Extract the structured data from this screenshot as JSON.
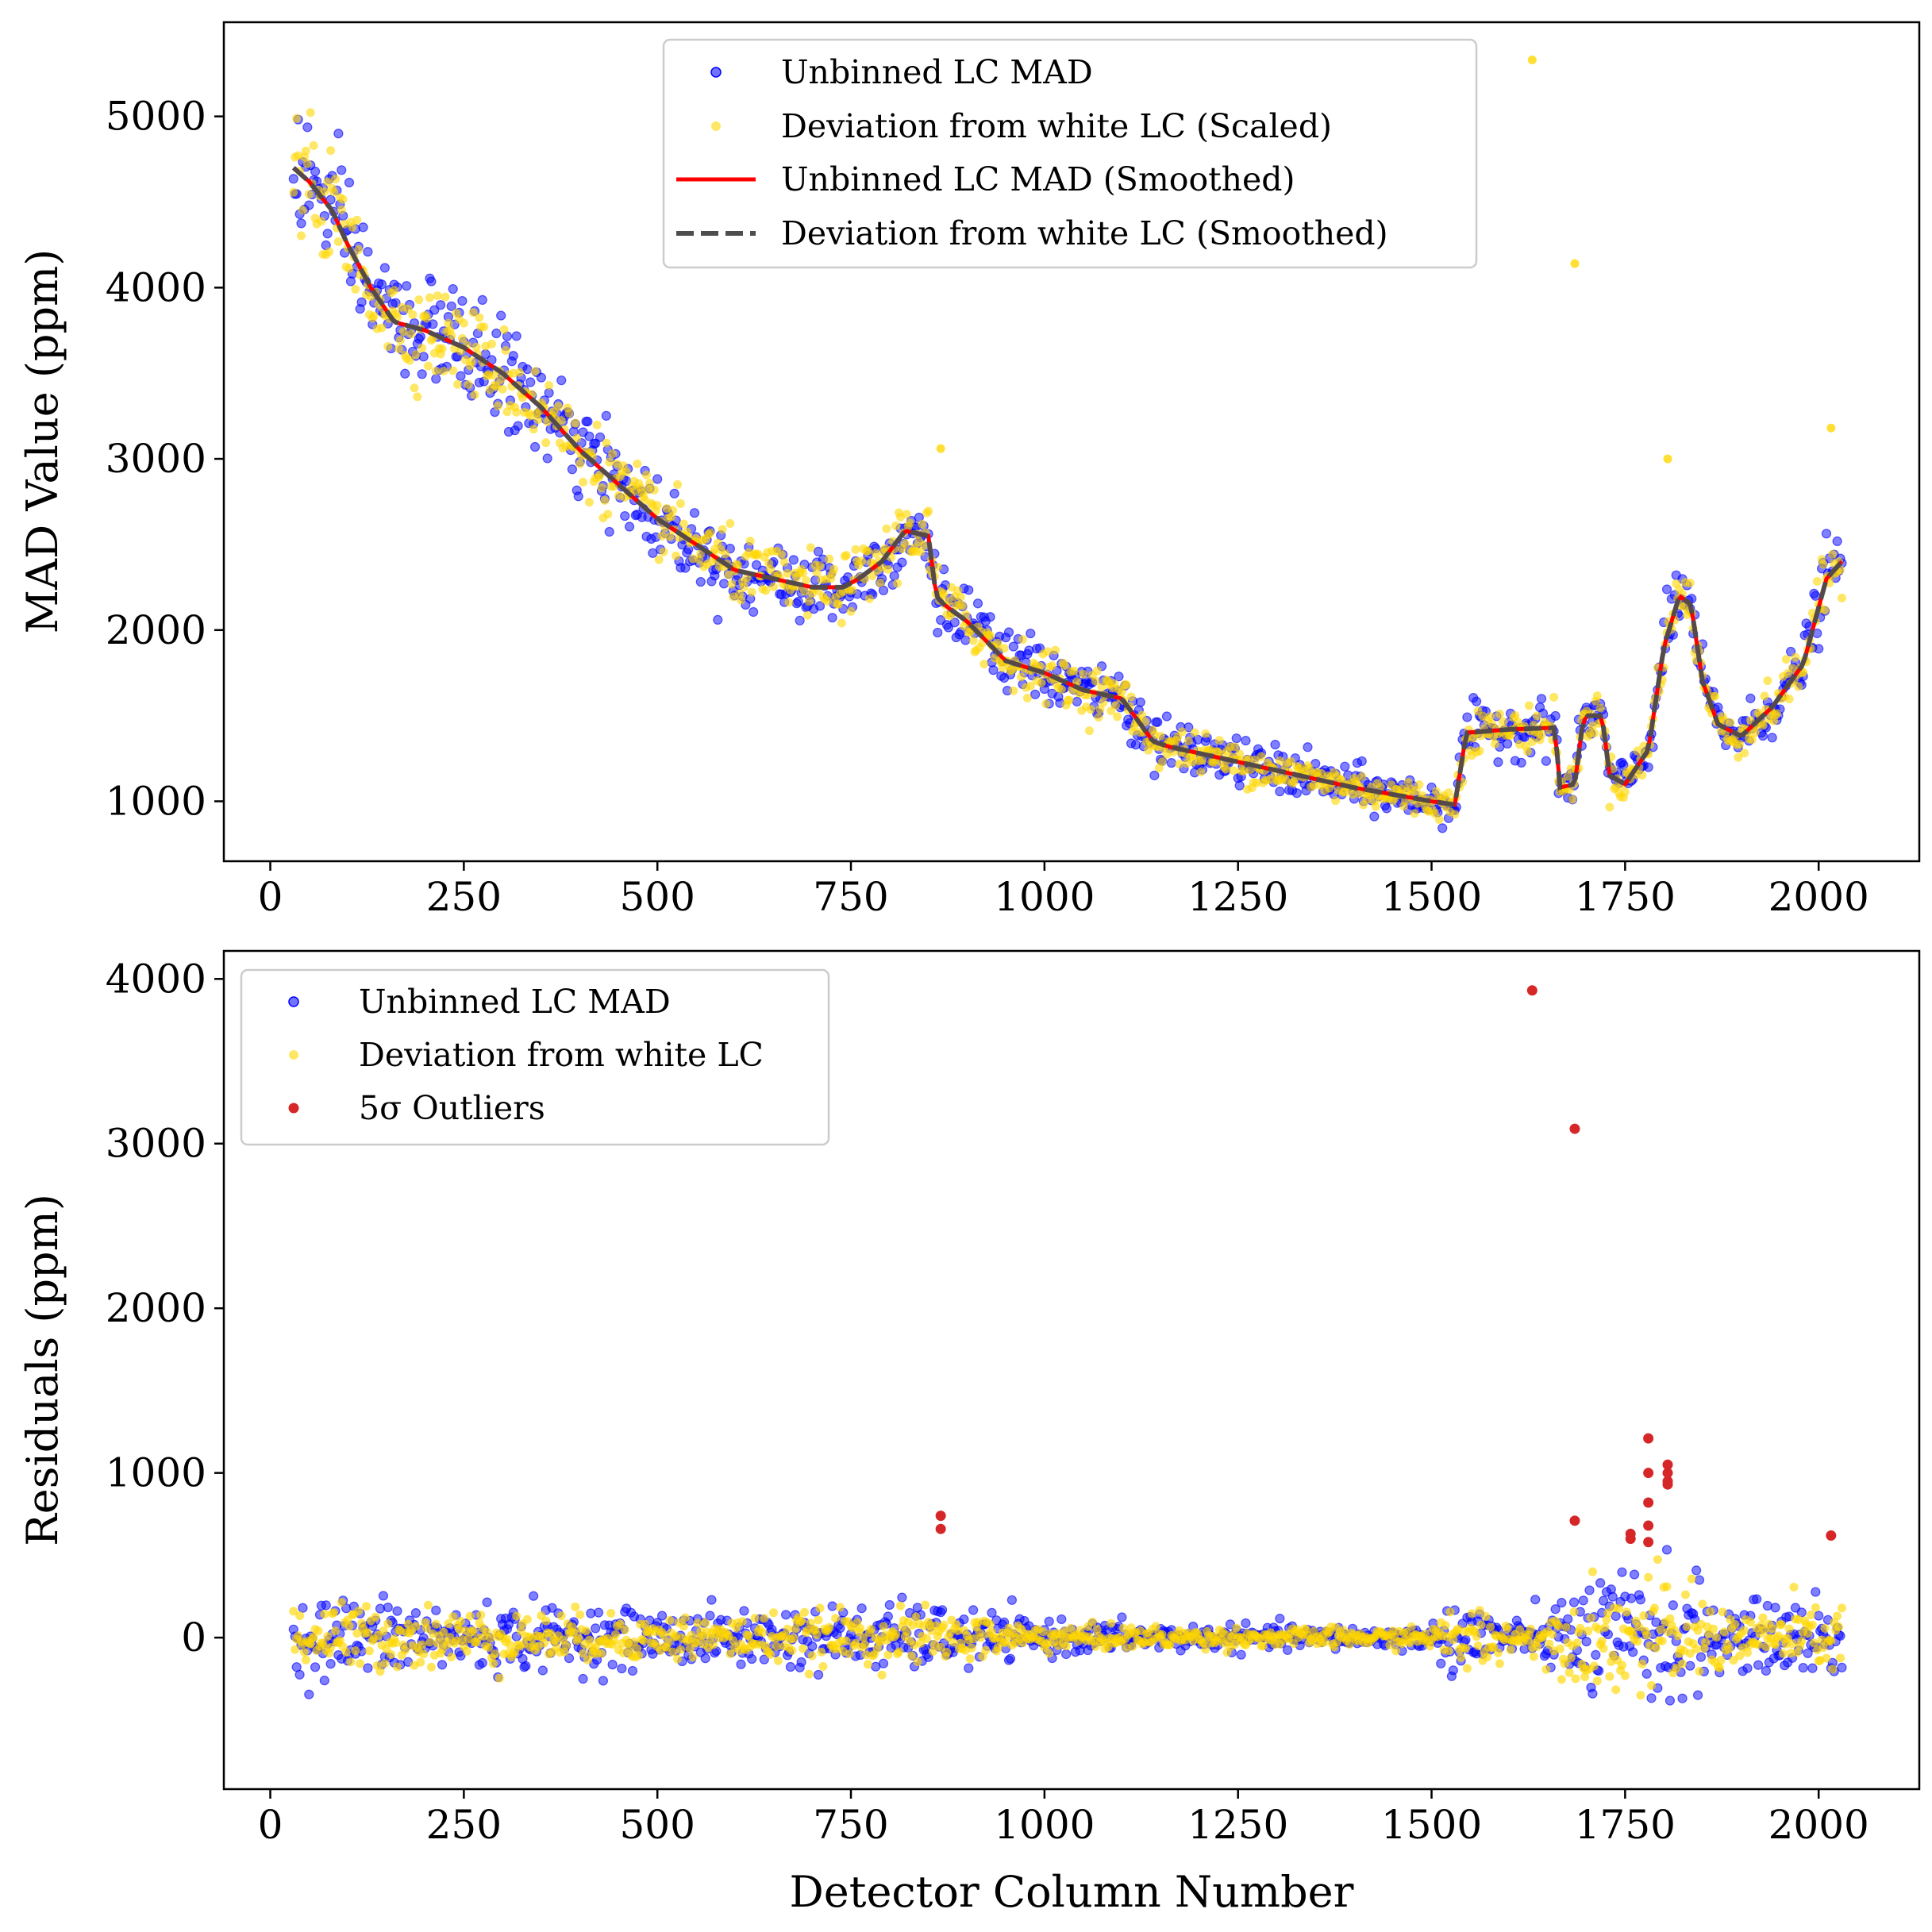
{
  "chart_data": [
    {
      "type": "scatter",
      "title": "",
      "xlabel": "",
      "ylabel": "MAD Value (ppm)",
      "xlim": [
        -60,
        2130
      ],
      "ylim": [
        650,
        5550
      ],
      "xticks": [
        0,
        250,
        500,
        750,
        1000,
        1250,
        1500,
        1750,
        2000
      ],
      "yticks": [
        1000,
        2000,
        3000,
        4000,
        5000
      ],
      "grid": false,
      "legend_position": "top-center",
      "smooth_knots": {
        "x": [
          30,
          50,
          80,
          100,
          130,
          160,
          200,
          250,
          300,
          350,
          400,
          450,
          500,
          550,
          600,
          650,
          700,
          740,
          760,
          790,
          820,
          850,
          860,
          870,
          900,
          950,
          1000,
          1050,
          1100,
          1140,
          1160,
          1200,
          1250,
          1300,
          1350,
          1400,
          1450,
          1500,
          1530,
          1545,
          1600,
          1660,
          1665,
          1685,
          1695,
          1700,
          1720,
          1730,
          1750,
          1780,
          1800,
          1820,
          1835,
          1850,
          1870,
          1900,
          1940,
          1980,
          2010,
          2030
        ],
        "y": [
          4700,
          4620,
          4450,
          4250,
          4000,
          3800,
          3750,
          3650,
          3500,
          3300,
          3050,
          2850,
          2650,
          2500,
          2350,
          2300,
          2250,
          2250,
          2300,
          2400,
          2580,
          2550,
          2200,
          2150,
          2050,
          1820,
          1750,
          1650,
          1600,
          1350,
          1320,
          1280,
          1230,
          1180,
          1130,
          1080,
          1040,
          1000,
          980,
          1400,
          1420,
          1430,
          1080,
          1100,
          1450,
          1500,
          1500,
          1150,
          1100,
          1300,
          1900,
          2200,
          2150,
          1700,
          1450,
          1380,
          1550,
          1800,
          2300,
          2400
        ]
      },
      "outliers_yellow": [
        {
          "x": 1630,
          "y": 5330
        },
        {
          "x": 1685,
          "y": 4140
        },
        {
          "x": 866,
          "y": 3060
        },
        {
          "x": 1805,
          "y": 3000
        },
        {
          "x": 2016,
          "y": 3180
        }
      ],
      "series": [
        {
          "name": "Unbinned LC MAD",
          "color": "#0000ff",
          "marker": "dot"
        },
        {
          "name": "Deviation from white LC (Scaled)",
          "color": "#ffd700",
          "marker": "dot"
        },
        {
          "name": "Unbinned LC MAD (Smoothed)",
          "color": "#ff0000",
          "marker": "line"
        },
        {
          "name": "Deviation from white LC (Smoothed)",
          "color": "#4d4d4d",
          "marker": "dashed-line"
        }
      ]
    },
    {
      "type": "scatter",
      "title": "",
      "xlabel": "Detector Column Number",
      "ylabel": "Residuals (ppm)",
      "xlim": [
        -60,
        2130
      ],
      "ylim": [
        -920,
        4170
      ],
      "xticks": [
        0,
        250,
        500,
        750,
        1000,
        1250,
        1500,
        1750,
        2000
      ],
      "yticks": [
        0,
        1000,
        2000,
        3000,
        4000
      ],
      "grid": false,
      "legend_position": "top-left",
      "series": [
        {
          "name": "Unbinned LC MAD",
          "color": "#0000ff",
          "marker": "dot"
        },
        {
          "name": "Deviation from white LC",
          "color": "#ffd700",
          "marker": "dot"
        },
        {
          "name": "5σ Outliers",
          "color": "#d62728",
          "marker": "dot"
        }
      ],
      "outliers": [
        {
          "x": 866,
          "y": 740
        },
        {
          "x": 866,
          "y": 660
        },
        {
          "x": 1630,
          "y": 3930
        },
        {
          "x": 1685,
          "y": 3090
        },
        {
          "x": 1685,
          "y": 710
        },
        {
          "x": 1757,
          "y": 630
        },
        {
          "x": 1757,
          "y": 600
        },
        {
          "x": 1780,
          "y": 1210
        },
        {
          "x": 1780,
          "y": 1000
        },
        {
          "x": 1780,
          "y": 820
        },
        {
          "x": 1780,
          "y": 680
        },
        {
          "x": 1780,
          "y": 580
        },
        {
          "x": 1805,
          "y": 1050
        },
        {
          "x": 1805,
          "y": 1000
        },
        {
          "x": 1805,
          "y": 950
        },
        {
          "x": 1805,
          "y": 930
        },
        {
          "x": 2016,
          "y": 620
        }
      ],
      "noise_envelope_ppm": [
        {
          "x": 30,
          "amp": 130
        },
        {
          "x": 200,
          "amp": 110
        },
        {
          "x": 500,
          "amp": 80
        },
        {
          "x": 850,
          "amp": 100
        },
        {
          "x": 1000,
          "amp": 50
        },
        {
          "x": 1250,
          "amp": 35
        },
        {
          "x": 1500,
          "amp": 35
        },
        {
          "x": 1540,
          "amp": 150
        },
        {
          "x": 1620,
          "amp": 40
        },
        {
          "x": 1700,
          "amp": 180
        },
        {
          "x": 1800,
          "amp": 230
        },
        {
          "x": 1900,
          "amp": 90
        },
        {
          "x": 2030,
          "amp": 140
        }
      ]
    }
  ]
}
